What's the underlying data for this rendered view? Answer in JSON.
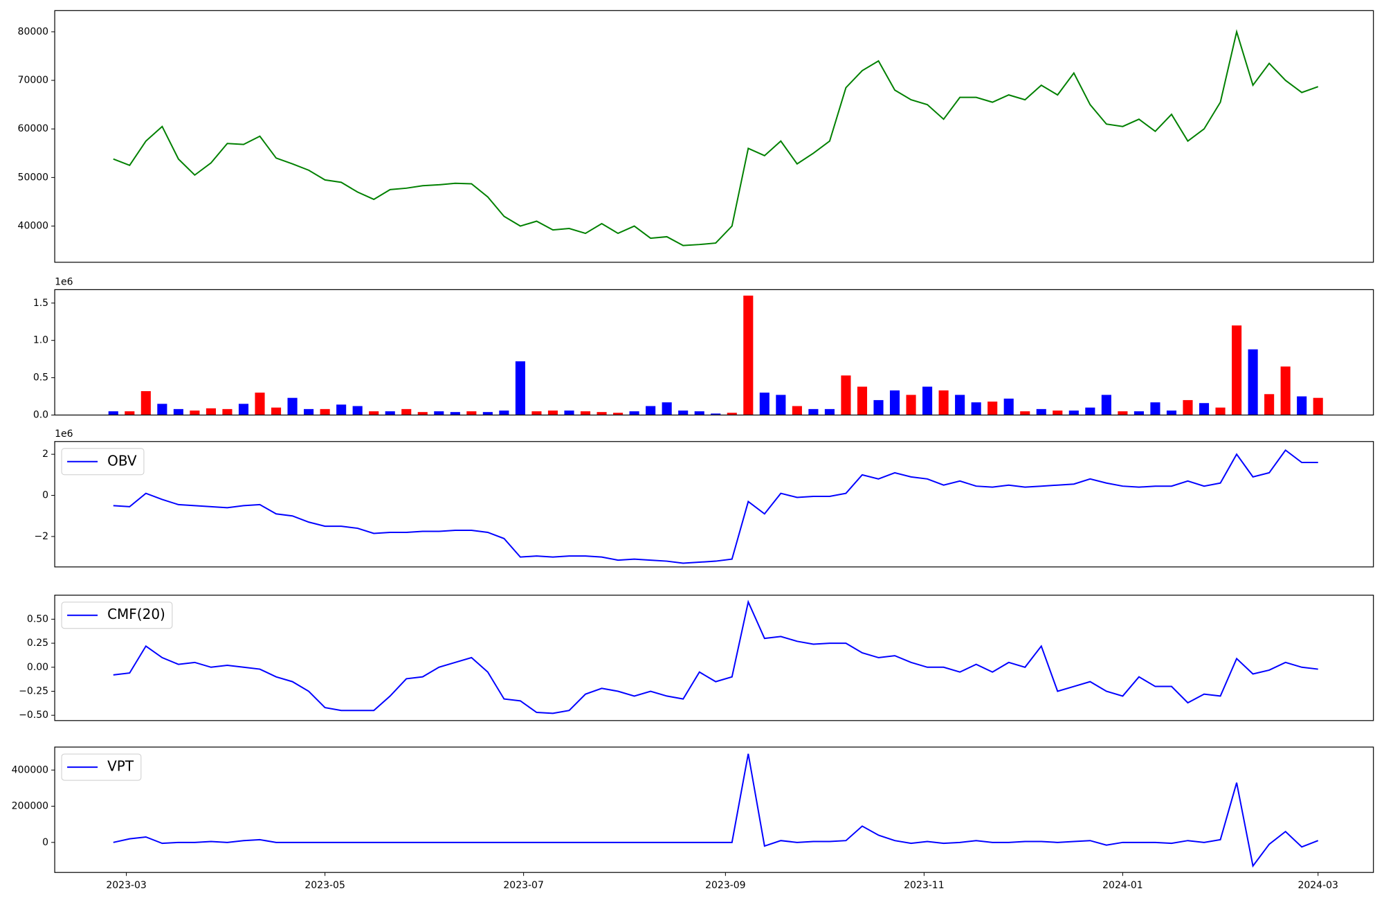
{
  "chart_data": [
    {
      "type": "line",
      "x": [
        -4,
        1,
        6,
        11,
        16,
        21,
        26,
        31,
        36,
        41,
        46,
        51,
        56,
        61,
        66,
        71,
        76,
        81,
        86,
        91,
        96,
        101,
        106,
        111,
        116,
        121,
        126,
        131,
        136,
        141,
        146,
        151,
        156,
        161,
        166,
        171,
        176,
        181,
        186,
        191,
        196,
        201,
        206,
        211,
        216,
        221,
        226,
        231,
        236,
        241,
        246,
        251,
        256,
        261,
        266,
        271,
        276,
        281,
        286,
        291,
        296,
        301,
        306,
        311,
        316,
        321,
        326,
        331,
        336,
        341,
        346,
        351,
        356,
        361,
        366
      ],
      "series": [
        {
          "color": "green",
          "values": [
            53800,
            52500,
            57500,
            60500,
            53800,
            50500,
            53000,
            57000,
            56800,
            58500,
            54000,
            52800,
            51500,
            49500,
            49000,
            47000,
            45500,
            47500,
            47800,
            48300,
            48500,
            48800,
            48700,
            46000,
            42000,
            40000,
            41000,
            39200,
            39500,
            38500,
            40500,
            38500,
            40000,
            37500,
            37800,
            36000,
            36200,
            36500,
            40000,
            56000,
            54500,
            57500,
            52800,
            55000,
            57500,
            68500,
            72000,
            74000,
            68000,
            66000,
            65000,
            62000,
            66500,
            66500,
            65500,
            67000,
            66000,
            69000,
            67000,
            71500,
            65000,
            61000,
            60500,
            62000,
            59500,
            63000,
            57500,
            60000,
            65500,
            80000,
            69000,
            73500,
            70000,
            67500,
            68700
          ]
        }
      ],
      "xlim": [
        -22,
        383
      ],
      "ylim": [
        32545,
        84364
      ],
      "yticks": [
        40000,
        50000,
        60000,
        70000,
        80000
      ]
    },
    {
      "type": "bar",
      "x": [
        -4,
        1,
        6,
        11,
        16,
        21,
        26,
        31,
        36,
        41,
        46,
        51,
        56,
        61,
        66,
        71,
        76,
        81,
        86,
        91,
        96,
        101,
        106,
        111,
        116,
        121,
        126,
        131,
        136,
        141,
        146,
        151,
        156,
        161,
        166,
        171,
        176,
        181,
        186,
        191,
        196,
        201,
        206,
        211,
        216,
        221,
        226,
        231,
        236,
        241,
        246,
        251,
        256,
        261,
        266,
        271,
        276,
        281,
        286,
        291,
        296,
        301,
        306,
        311,
        316,
        321,
        326,
        331,
        336,
        341,
        346,
        351,
        356,
        361,
        366
      ],
      "values": [
        0.05,
        0.05,
        0.32,
        0.15,
        0.08,
        0.06,
        0.09,
        0.08,
        0.15,
        0.3,
        0.1,
        0.23,
        0.08,
        0.08,
        0.14,
        0.12,
        0.05,
        0.05,
        0.08,
        0.04,
        0.05,
        0.04,
        0.05,
        0.04,
        0.06,
        0.72,
        0.05,
        0.06,
        0.06,
        0.05,
        0.04,
        0.03,
        0.05,
        0.12,
        0.17,
        0.06,
        0.05,
        0.02,
        0.03,
        1.6,
        0.3,
        0.27,
        0.12,
        0.08,
        0.08,
        0.53,
        0.38,
        0.2,
        0.33,
        0.27,
        0.38,
        0.33,
        0.27,
        0.17,
        0.18,
        0.22,
        0.05,
        0.08,
        0.06,
        0.06,
        0.1,
        0.27,
        0.05,
        0.05,
        0.17,
        0.06,
        0.2,
        0.16,
        0.1,
        1.2,
        0.88,
        0.28,
        0.65,
        0.25,
        0.23
      ],
      "colors": [
        "blue",
        "red",
        "red",
        "blue",
        "blue",
        "red",
        "red",
        "red",
        "blue",
        "red",
        "red",
        "blue",
        "blue",
        "red",
        "blue",
        "blue",
        "red",
        "blue",
        "red",
        "red",
        "blue",
        "blue",
        "red",
        "blue",
        "blue",
        "blue",
        "red",
        "red",
        "blue",
        "red",
        "red",
        "red",
        "blue",
        "blue",
        "blue",
        "blue",
        "blue",
        "blue",
        "red",
        "red",
        "blue",
        "blue",
        "red",
        "blue",
        "blue",
        "red",
        "red",
        "blue",
        "blue",
        "red",
        "blue",
        "red",
        "blue",
        "blue",
        "red",
        "blue",
        "red",
        "blue",
        "red",
        "blue",
        "blue",
        "blue",
        "red",
        "blue",
        "blue",
        "blue",
        "red",
        "blue",
        "red",
        "red",
        "blue",
        "red",
        "red",
        "blue",
        "red"
      ],
      "y_offset_label": "1e6",
      "xlim": [
        -22,
        383
      ],
      "ylim": [
        0,
        1.68
      ],
      "yticks": [
        {
          "value": 0,
          "label": "0.0"
        },
        {
          "value": 0.5,
          "label": "0.5"
        },
        {
          "value": 1,
          "label": "1.0"
        },
        {
          "value": 1.5,
          "label": "1.5"
        }
      ]
    },
    {
      "type": "line",
      "x": [
        -4,
        1,
        6,
        11,
        16,
        21,
        26,
        31,
        36,
        41,
        46,
        51,
        56,
        61,
        66,
        71,
        76,
        81,
        86,
        91,
        96,
        101,
        106,
        111,
        116,
        121,
        126,
        131,
        136,
        141,
        146,
        151,
        156,
        161,
        166,
        171,
        176,
        181,
        186,
        191,
        196,
        201,
        206,
        211,
        216,
        221,
        226,
        231,
        236,
        241,
        246,
        251,
        256,
        261,
        266,
        271,
        276,
        281,
        286,
        291,
        296,
        301,
        306,
        311,
        316,
        321,
        326,
        331,
        336,
        341,
        346,
        351,
        356,
        361,
        366
      ],
      "series": [
        {
          "name": "OBV",
          "color": "blue",
          "values": [
            -0.5,
            -0.55,
            0.1,
            -0.2,
            -0.45,
            -0.5,
            -0.55,
            -0.6,
            -0.5,
            -0.45,
            -0.9,
            -1.0,
            -1.3,
            -1.5,
            -1.5,
            -1.6,
            -1.85,
            -1.8,
            -1.8,
            -1.75,
            -1.75,
            -1.7,
            -1.7,
            -1.8,
            -2.1,
            -3.0,
            -2.95,
            -3.0,
            -2.95,
            -2.95,
            -3.0,
            -3.15,
            -3.1,
            -3.15,
            -3.2,
            -3.3,
            -3.25,
            -3.2,
            -3.1,
            -0.3,
            -0.9,
            0.1,
            -0.1,
            -0.05,
            -0.05,
            0.1,
            1.0,
            0.8,
            1.1,
            0.9,
            0.8,
            0.5,
            0.7,
            0.45,
            0.4,
            0.5,
            0.4,
            0.45,
            0.5,
            0.55,
            0.8,
            0.6,
            0.45,
            0.4,
            0.45,
            0.45,
            0.7,
            0.45,
            0.6,
            2.0,
            0.9,
            1.1,
            2.2,
            1.6,
            1.6
          ]
        }
      ],
      "y_offset_label": "1e6",
      "legend": "upper left",
      "xlim": [
        -22,
        383
      ],
      "ylim": [
        -3.48,
        2.62
      ],
      "yticks": [
        {
          "value": -2,
          "label": "−2"
        },
        0,
        2
      ]
    },
    {
      "type": "line",
      "x": [
        -4,
        1,
        6,
        11,
        16,
        21,
        26,
        31,
        36,
        41,
        46,
        51,
        56,
        61,
        66,
        71,
        76,
        81,
        86,
        91,
        96,
        101,
        106,
        111,
        116,
        121,
        126,
        131,
        136,
        141,
        146,
        151,
        156,
        161,
        166,
        171,
        176,
        181,
        186,
        191,
        196,
        201,
        206,
        211,
        216,
        221,
        226,
        231,
        236,
        241,
        246,
        251,
        256,
        261,
        266,
        271,
        276,
        281,
        286,
        291,
        296,
        301,
        306,
        311,
        316,
        321,
        326,
        331,
        336,
        341,
        346,
        351,
        356,
        361,
        366
      ],
      "series": [
        {
          "name": "CMF(20)",
          "color": "blue",
          "values": [
            -0.08,
            -0.06,
            0.22,
            0.1,
            0.03,
            0.05,
            0.0,
            0.02,
            0.0,
            -0.02,
            -0.1,
            -0.15,
            -0.25,
            -0.42,
            -0.45,
            -0.45,
            -0.45,
            -0.3,
            -0.12,
            -0.1,
            0.0,
            0.05,
            0.1,
            -0.05,
            -0.33,
            -0.35,
            -0.47,
            -0.48,
            -0.45,
            -0.28,
            -0.22,
            -0.25,
            -0.3,
            -0.25,
            -0.3,
            -0.33,
            -0.05,
            -0.15,
            -0.1,
            0.68,
            0.3,
            0.32,
            0.27,
            0.24,
            0.25,
            0.25,
            0.15,
            0.1,
            0.12,
            0.05,
            0.0,
            0.0,
            -0.05,
            0.03,
            -0.05,
            0.05,
            0.0,
            0.22,
            -0.25,
            -0.2,
            -0.15,
            -0.25,
            -0.3,
            -0.1,
            -0.2,
            -0.2,
            -0.37,
            -0.28,
            -0.3,
            0.09,
            -0.07,
            -0.03,
            0.05,
            0.0,
            -0.02
          ]
        }
      ],
      "legend": "upper left",
      "xlim": [
        -22,
        383
      ],
      "ylim": [
        -0.555,
        0.75
      ],
      "yticks": [
        {
          "value": -0.5,
          "label": "−0.50"
        },
        {
          "value": -0.25,
          "label": "−0.25"
        },
        {
          "value": 0,
          "label": "0.00"
        },
        {
          "value": 0.25,
          "label": "0.25"
        },
        {
          "value": 0.5,
          "label": "0.50"
        }
      ]
    },
    {
      "type": "line",
      "x": [
        -4,
        1,
        6,
        11,
        16,
        21,
        26,
        31,
        36,
        41,
        46,
        51,
        56,
        61,
        66,
        71,
        76,
        81,
        86,
        91,
        96,
        101,
        106,
        111,
        116,
        121,
        126,
        131,
        136,
        141,
        146,
        151,
        156,
        161,
        166,
        171,
        176,
        181,
        186,
        191,
        196,
        201,
        206,
        211,
        216,
        221,
        226,
        231,
        236,
        241,
        246,
        251,
        256,
        261,
        266,
        271,
        276,
        281,
        286,
        291,
        296,
        301,
        306,
        311,
        316,
        321,
        326,
        331,
        336,
        341,
        346,
        351,
        356,
        361,
        366
      ],
      "series": [
        {
          "name": "VPT",
          "color": "blue",
          "values": [
            0,
            20000,
            30000,
            -5000,
            0,
            0,
            5000,
            0,
            10000,
            15000,
            0,
            0,
            0,
            0,
            0,
            0,
            0,
            0,
            0,
            0,
            0,
            0,
            0,
            0,
            0,
            0,
            0,
            0,
            0,
            0,
            0,
            0,
            0,
            0,
            0,
            0,
            0,
            0,
            0,
            490000,
            -20000,
            10000,
            0,
            5000,
            5000,
            10000,
            90000,
            40000,
            10000,
            -5000,
            5000,
            -5000,
            0,
            10000,
            0,
            0,
            5000,
            5000,
            0,
            5000,
            10000,
            -15000,
            0,
            0,
            0,
            -5000,
            10000,
            0,
            15000,
            330000,
            -130000,
            -10000,
            60000,
            -25000,
            10000
          ]
        }
      ],
      "legend": "upper left",
      "xlim": [
        -22,
        383
      ],
      "ylim": [
        -166000,
        527000
      ],
      "yticks": [
        0,
        200000,
        400000
      ],
      "xticks": [
        {
          "value": 0,
          "label": "2023-03"
        },
        {
          "value": 61,
          "label": "2023-05"
        },
        {
          "value": 122,
          "label": "2023-07"
        },
        {
          "value": 184,
          "label": "2023-09"
        },
        {
          "value": 245,
          "label": "2023-11"
        },
        {
          "value": 306,
          "label": "2024-01"
        },
        {
          "value": 366,
          "label": "2024-03"
        }
      ]
    }
  ]
}
